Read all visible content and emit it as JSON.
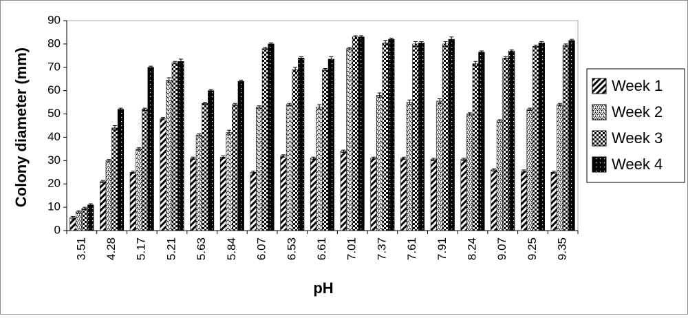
{
  "chart_data": {
    "type": "bar",
    "x_label": "pH",
    "y_label": "Colony diameter (mm)",
    "categories": [
      "3.51",
      "4.28",
      "5.17",
      "5.21",
      "5.63",
      "5.84",
      "6.07",
      "6.53",
      "6.61",
      "7.01",
      "7.37",
      "7.61",
      "7.91",
      "8.24",
      "9.07",
      "9.25",
      "9.35"
    ],
    "series": [
      {
        "name": "Week 1",
        "color": "#000000",
        "values": [
          5.5,
          21,
          25,
          48,
          31,
          31.5,
          25,
          32,
          31,
          34,
          31,
          31,
          30.5,
          30.5,
          26,
          25.5,
          25
        ],
        "errors": [
          0.5,
          0.5,
          0.5,
          0.5,
          0.5,
          0.5,
          0.5,
          0.5,
          0.5,
          0.5,
          0.5,
          0.5,
          0.5,
          0.5,
          0.5,
          0.5,
          0.5
        ]
      },
      {
        "name": "Week 2",
        "color": "#000000",
        "values": [
          8,
          30,
          35,
          64.5,
          41,
          42,
          53,
          54,
          53,
          78,
          58,
          55,
          55.5,
          50,
          47,
          52,
          54
        ],
        "errors": [
          0.5,
          0.5,
          0.5,
          1,
          0.5,
          1,
          0.5,
          0.5,
          1,
          0.5,
          1,
          1,
          1,
          0.5,
          0.5,
          0.5,
          0.5
        ]
      },
      {
        "name": "Week 3",
        "color": "#000000",
        "values": [
          9.5,
          44,
          52,
          72,
          54.5,
          54,
          78,
          69,
          69,
          83,
          80.5,
          80,
          80,
          71.5,
          74,
          79,
          79.5
        ],
        "errors": [
          0.5,
          1,
          0.5,
          0.5,
          0.5,
          0.5,
          0.5,
          1,
          0.5,
          0.5,
          1,
          1,
          1,
          1,
          0.5,
          0.5,
          0.5
        ]
      },
      {
        "name": "Week 4",
        "color": "#000000",
        "values": [
          11,
          52,
          70,
          72.5,
          60,
          64,
          80,
          74,
          73.5,
          83,
          82,
          80.5,
          82,
          76.5,
          77,
          80.5,
          81.5
        ],
        "errors": [
          0.5,
          0.5,
          0.5,
          1,
          0.5,
          0.5,
          0.5,
          0.5,
          1,
          0.5,
          0.5,
          0.5,
          1,
          0.5,
          0.5,
          0.5,
          0.5
        ]
      }
    ],
    "ylim": [
      0,
      90
    ],
    "yticks": [
      0,
      10,
      20,
      30,
      40,
      50,
      60,
      70,
      80,
      90
    ],
    "legend": "right"
  }
}
